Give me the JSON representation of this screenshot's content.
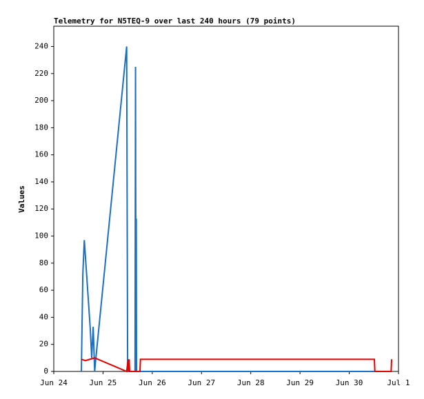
{
  "chart_data": {
    "type": "line",
    "title": "Telemetry for N5TEQ-9 over last 240 hours (79 points)",
    "y_label": "Values",
    "x": null,
    "series": [
      {
        "color": "#1a6ec4",
        "x": [
          24.56,
          24.59,
          24.62,
          24.74,
          24.77,
          24.8,
          24.83,
          24.85,
          25.48,
          25.5,
          25.65,
          25.66,
          25.67,
          25.675,
          25.68,
          30.86
        ],
        "values": [
          0,
          72,
          97,
          32,
          10,
          33,
          0,
          8,
          240,
          0,
          0,
          225,
          0,
          113,
          0,
          0
        ]
      },
      {
        "color": "#e00000",
        "x": [
          24.56,
          24.64,
          24.83,
          25.48,
          25.51,
          25.52,
          25.53,
          25.54,
          25.75,
          25.76,
          30.51,
          30.52,
          30.85,
          30.86
        ],
        "values": [
          9,
          8,
          10,
          0,
          9,
          0,
          9,
          0,
          0,
          9,
          9,
          0,
          0,
          9
        ]
      }
    ],
    "xlim": [
      24,
      31
    ],
    "xticks": [
      {
        "value": 24,
        "label": "Jun 24"
      },
      {
        "value": 25,
        "label": "Jun 25"
      },
      {
        "value": 26,
        "label": "Jun 26"
      },
      {
        "value": 27,
        "label": "Jun 27"
      },
      {
        "value": 28,
        "label": "Jun 28"
      },
      {
        "value": 29,
        "label": "Jun 29"
      },
      {
        "value": 30,
        "label": "Jun 30"
      },
      {
        "value": 31,
        "label": "Jul 1"
      }
    ],
    "ylim": [
      0,
      255
    ],
    "yticks": [
      0,
      20,
      40,
      60,
      80,
      100,
      120,
      140,
      160,
      180,
      200,
      220,
      240
    ],
    "grid": false
  }
}
